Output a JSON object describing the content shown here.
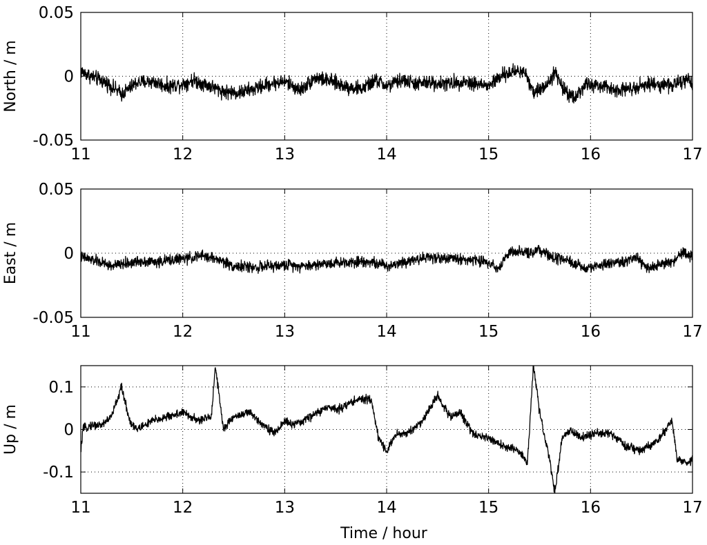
{
  "figure": {
    "xlabel": "Time / hour"
  },
  "chart_data": [
    {
      "type": "line",
      "title": "",
      "xlabel": "",
      "ylabel": "North / m",
      "xlim": [
        11,
        17
      ],
      "ylim": [
        -0.05,
        0.05
      ],
      "xticks": [
        11,
        12,
        13,
        14,
        15,
        16,
        17
      ],
      "yticks": [
        -0.05,
        0,
        0.05
      ],
      "ytick_labels": [
        "-0.05",
        "0",
        "0.05"
      ],
      "grid": true,
      "series": [
        {
          "color": "#000000",
          "noise": 0.004,
          "x": [
            11.0,
            11.1,
            11.25,
            11.4,
            11.55,
            11.7,
            11.85,
            12.0,
            12.1,
            12.25,
            12.4,
            12.55,
            12.7,
            12.85,
            13.0,
            13.15,
            13.3,
            13.45,
            13.6,
            13.75,
            13.9,
            14.0,
            14.15,
            14.3,
            14.45,
            14.6,
            14.75,
            14.9,
            15.0,
            15.1,
            15.25,
            15.35,
            15.45,
            15.55,
            15.65,
            15.75,
            15.85,
            15.95,
            16.05,
            16.2,
            16.35,
            16.5,
            16.65,
            16.8,
            16.95,
            17.0
          ],
          "y": [
            0.004,
            0.0,
            -0.005,
            -0.014,
            -0.005,
            -0.004,
            -0.008,
            -0.006,
            -0.003,
            -0.007,
            -0.012,
            -0.013,
            -0.01,
            -0.006,
            -0.004,
            -0.011,
            -0.001,
            -0.004,
            -0.008,
            -0.01,
            -0.003,
            -0.008,
            -0.003,
            -0.006,
            -0.005,
            -0.006,
            -0.004,
            -0.006,
            -0.008,
            -0.001,
            0.004,
            0.004,
            -0.013,
            -0.008,
            0.003,
            -0.012,
            -0.016,
            -0.007,
            -0.007,
            -0.01,
            -0.01,
            -0.007,
            -0.006,
            -0.007,
            -0.003,
            -0.008
          ]
        }
      ]
    },
    {
      "type": "line",
      "title": "",
      "xlabel": "",
      "ylabel": "East / m",
      "xlim": [
        11,
        17
      ],
      "ylim": [
        -0.05,
        0.05
      ],
      "xticks": [
        11,
        12,
        13,
        14,
        15,
        16,
        17
      ],
      "yticks": [
        -0.05,
        0,
        0.05
      ],
      "ytick_labels": [
        "-0.05",
        "0",
        "0.05"
      ],
      "grid": true,
      "series": [
        {
          "color": "#000000",
          "noise": 0.003,
          "x": [
            11.0,
            11.15,
            11.3,
            11.45,
            11.6,
            11.75,
            11.9,
            12.05,
            12.2,
            12.35,
            12.5,
            12.7,
            12.9,
            13.05,
            13.2,
            13.4,
            13.6,
            13.8,
            13.95,
            14.0,
            14.2,
            14.4,
            14.6,
            14.8,
            15.0,
            15.1,
            15.2,
            15.35,
            15.5,
            15.65,
            15.8,
            15.95,
            16.05,
            16.2,
            16.35,
            16.45,
            16.55,
            16.7,
            16.8,
            16.9,
            17.0
          ],
          "y": [
            -0.003,
            -0.006,
            -0.01,
            -0.008,
            -0.006,
            -0.007,
            -0.005,
            -0.004,
            -0.002,
            -0.005,
            -0.01,
            -0.011,
            -0.01,
            -0.009,
            -0.01,
            -0.008,
            -0.007,
            -0.006,
            -0.009,
            -0.01,
            -0.006,
            -0.003,
            -0.004,
            -0.005,
            -0.007,
            -0.012,
            0.001,
            0.0,
            0.002,
            -0.004,
            -0.007,
            -0.012,
            -0.01,
            -0.008,
            -0.006,
            -0.004,
            -0.012,
            -0.008,
            -0.007,
            0.0,
            -0.003
          ]
        }
      ]
    },
    {
      "type": "line",
      "title": "",
      "xlabel": "Time / hour",
      "ylabel": "Up / m",
      "xlim": [
        11,
        17
      ],
      "ylim": [
        -0.15,
        0.15
      ],
      "xticks": [
        11,
        12,
        13,
        14,
        15,
        16,
        17
      ],
      "yticks": [
        -0.1,
        0,
        0.1
      ],
      "ytick_labels": [
        "-0.1",
        "0",
        "0.1"
      ],
      "grid": true,
      "series": [
        {
          "color": "#000000",
          "noise": 0.007,
          "x": [
            11.0,
            11.02,
            11.1,
            11.2,
            11.3,
            11.4,
            11.48,
            11.55,
            11.7,
            11.85,
            12.0,
            12.15,
            12.28,
            12.32,
            12.4,
            12.5,
            12.65,
            12.75,
            12.9,
            13.0,
            13.1,
            13.25,
            13.4,
            13.55,
            13.7,
            13.85,
            13.92,
            14.0,
            14.1,
            14.2,
            14.35,
            14.5,
            14.62,
            14.72,
            14.85,
            15.0,
            15.15,
            15.3,
            15.38,
            15.44,
            15.5,
            15.6,
            15.65,
            15.72,
            15.8,
            15.9,
            16.05,
            16.2,
            16.35,
            16.5,
            16.65,
            16.8,
            16.85,
            16.95,
            17.0
          ],
          "y": [
            -0.055,
            0.0,
            0.01,
            0.01,
            0.03,
            0.1,
            0.02,
            0.0,
            0.02,
            0.03,
            0.04,
            0.02,
            0.03,
            0.15,
            0.0,
            0.03,
            0.04,
            0.02,
            -0.01,
            0.02,
            0.01,
            0.03,
            0.05,
            0.05,
            0.07,
            0.07,
            -0.02,
            -0.05,
            -0.01,
            -0.01,
            0.02,
            0.08,
            0.03,
            0.04,
            -0.01,
            -0.02,
            -0.04,
            -0.05,
            -0.08,
            0.15,
            0.04,
            -0.07,
            -0.15,
            -0.02,
            0.0,
            -0.02,
            -0.01,
            -0.01,
            -0.04,
            -0.05,
            -0.03,
            0.02,
            -0.07,
            -0.08,
            -0.07
          ]
        }
      ]
    }
  ]
}
